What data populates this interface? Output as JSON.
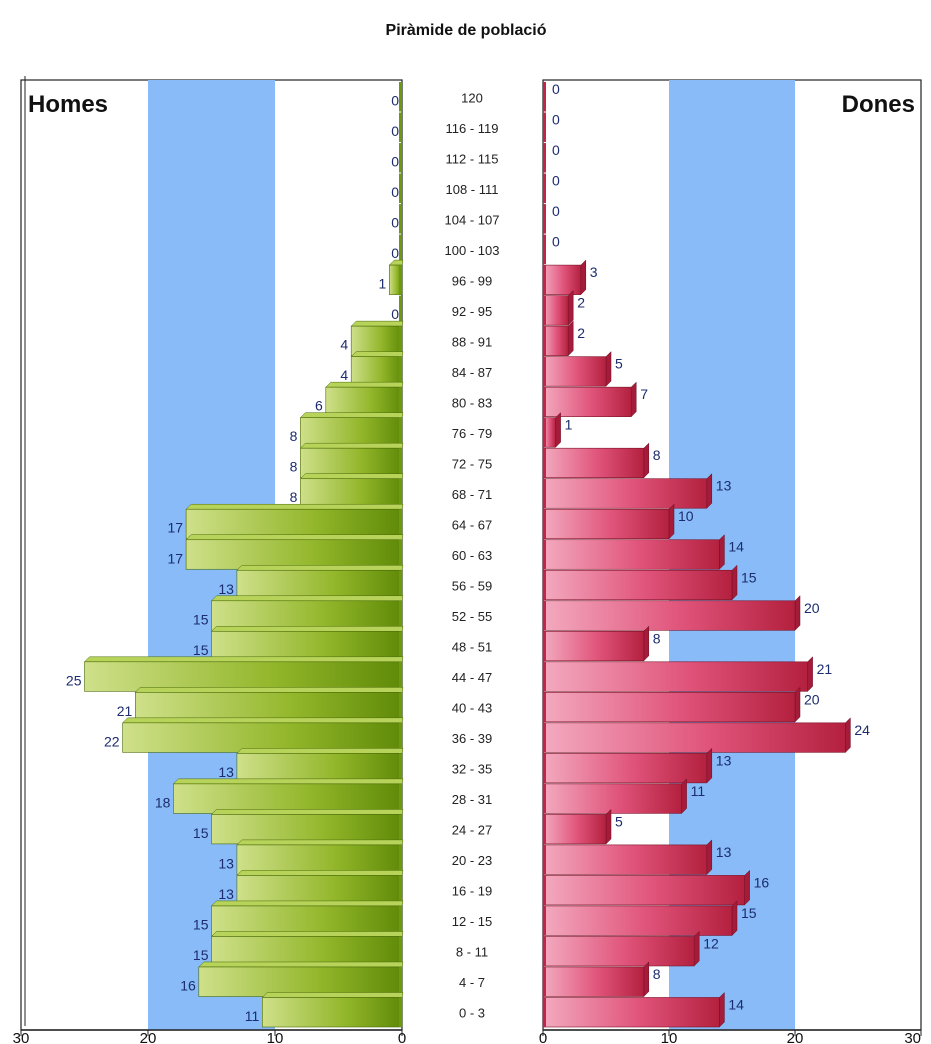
{
  "chart_data": {
    "type": "bar",
    "title": "Piràmide de població",
    "orientation": "horizontal",
    "categories": [
      "120",
      "116 - 119",
      "112 - 115",
      "108 - 111",
      "104 - 107",
      "100 - 103",
      "96 - 99",
      "92 - 95",
      "88 - 91",
      "84 - 87",
      "80 - 83",
      "76 - 79",
      "72 - 75",
      "68 - 71",
      "64 - 67",
      "60 - 63",
      "56 - 59",
      "52 - 55",
      "48 - 51",
      "44 - 47",
      "40 - 43",
      "36 - 39",
      "32 - 35",
      "28 - 31",
      "24 - 27",
      "20 - 23",
      "16 - 19",
      "12 - 15",
      "8 - 11",
      "4 - 7",
      "0 - 3"
    ],
    "series": [
      {
        "name": "Homes",
        "color": "#8ab31a",
        "values": [
          0,
          0,
          0,
          0,
          0,
          0,
          1,
          0,
          4,
          4,
          6,
          8,
          8,
          8,
          17,
          17,
          13,
          15,
          15,
          25,
          21,
          22,
          13,
          18,
          15,
          13,
          13,
          15,
          15,
          16,
          11
        ]
      },
      {
        "name": "Dones",
        "color": "#d8365e",
        "values": [
          0,
          0,
          0,
          0,
          0,
          0,
          3,
          2,
          2,
          5,
          7,
          1,
          8,
          13,
          10,
          14,
          15,
          20,
          8,
          21,
          20,
          24,
          13,
          11,
          5,
          13,
          16,
          15,
          12,
          8,
          14
        ]
      }
    ],
    "xlim": [
      0,
      30
    ],
    "xticks": [
      "30",
      "20",
      "10",
      "0",
      "0",
      "10",
      "20",
      "30"
    ],
    "highlight_band": [
      10,
      20
    ],
    "band_color": "#88bbf7",
    "legend": "none"
  }
}
